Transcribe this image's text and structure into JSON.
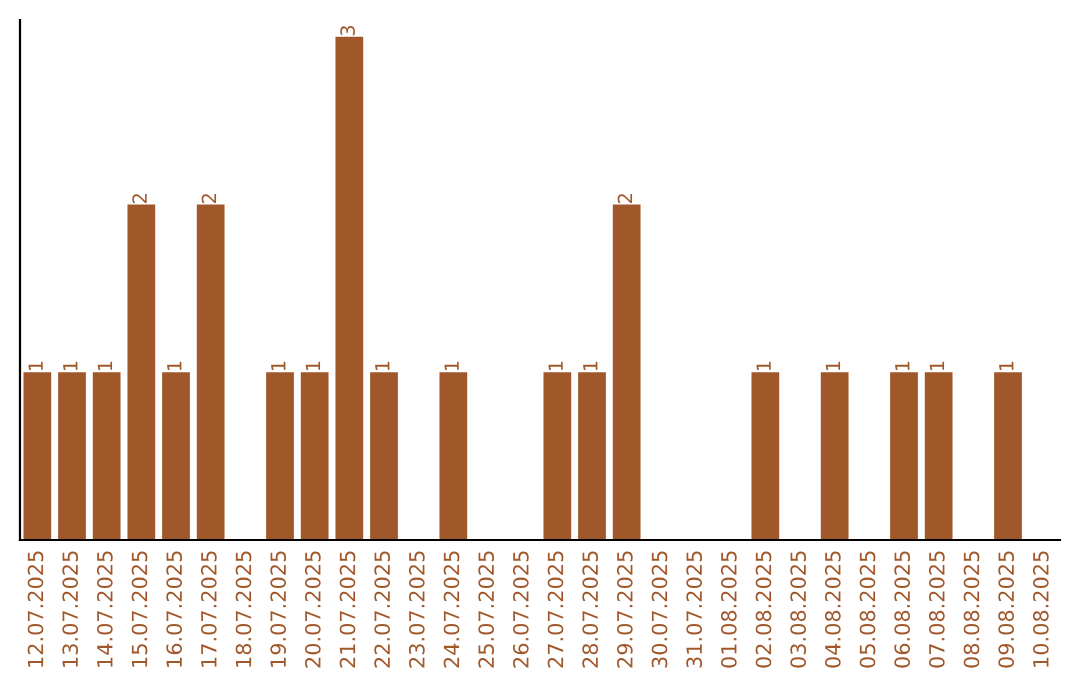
{
  "chart_data": {
    "type": "bar",
    "categories": [
      "12.07.2025",
      "13.07.2025",
      "14.07.2025",
      "15.07.2025",
      "16.07.2025",
      "17.07.2025",
      "18.07.2025",
      "19.07.2025",
      "20.07.2025",
      "21.07.2025",
      "22.07.2025",
      "23.07.2025",
      "24.07.2025",
      "25.07.2025",
      "26.07.2025",
      "27.07.2025",
      "28.07.2025",
      "29.07.2025",
      "30.07.2025",
      "31.07.2025",
      "01.08.2025",
      "02.08.2025",
      "03.08.2025",
      "04.08.2025",
      "05.08.2025",
      "06.08.2025",
      "07.08.2025",
      "08.08.2025",
      "09.08.2025",
      "10.08.2025"
    ],
    "values": [
      1,
      1,
      1,
      2,
      1,
      2,
      0,
      1,
      1,
      3,
      1,
      0,
      1,
      0,
      0,
      1,
      1,
      2,
      0,
      0,
      0,
      1,
      0,
      1,
      0,
      1,
      1,
      0,
      1,
      0
    ],
    "value_labels": [
      "1",
      "1",
      "1",
      "2",
      "1",
      "2",
      null,
      "1",
      "1",
      "3",
      "1",
      null,
      "1",
      null,
      null,
      "1",
      "1",
      "2",
      null,
      null,
      null,
      "1",
      null,
      "1",
      null,
      "1",
      "1",
      null,
      "1",
      null
    ],
    "color": "#a0582a",
    "ylim": [
      0,
      3.1
    ],
    "tick_labels": "x",
    "grid": false,
    "legend": false
  }
}
